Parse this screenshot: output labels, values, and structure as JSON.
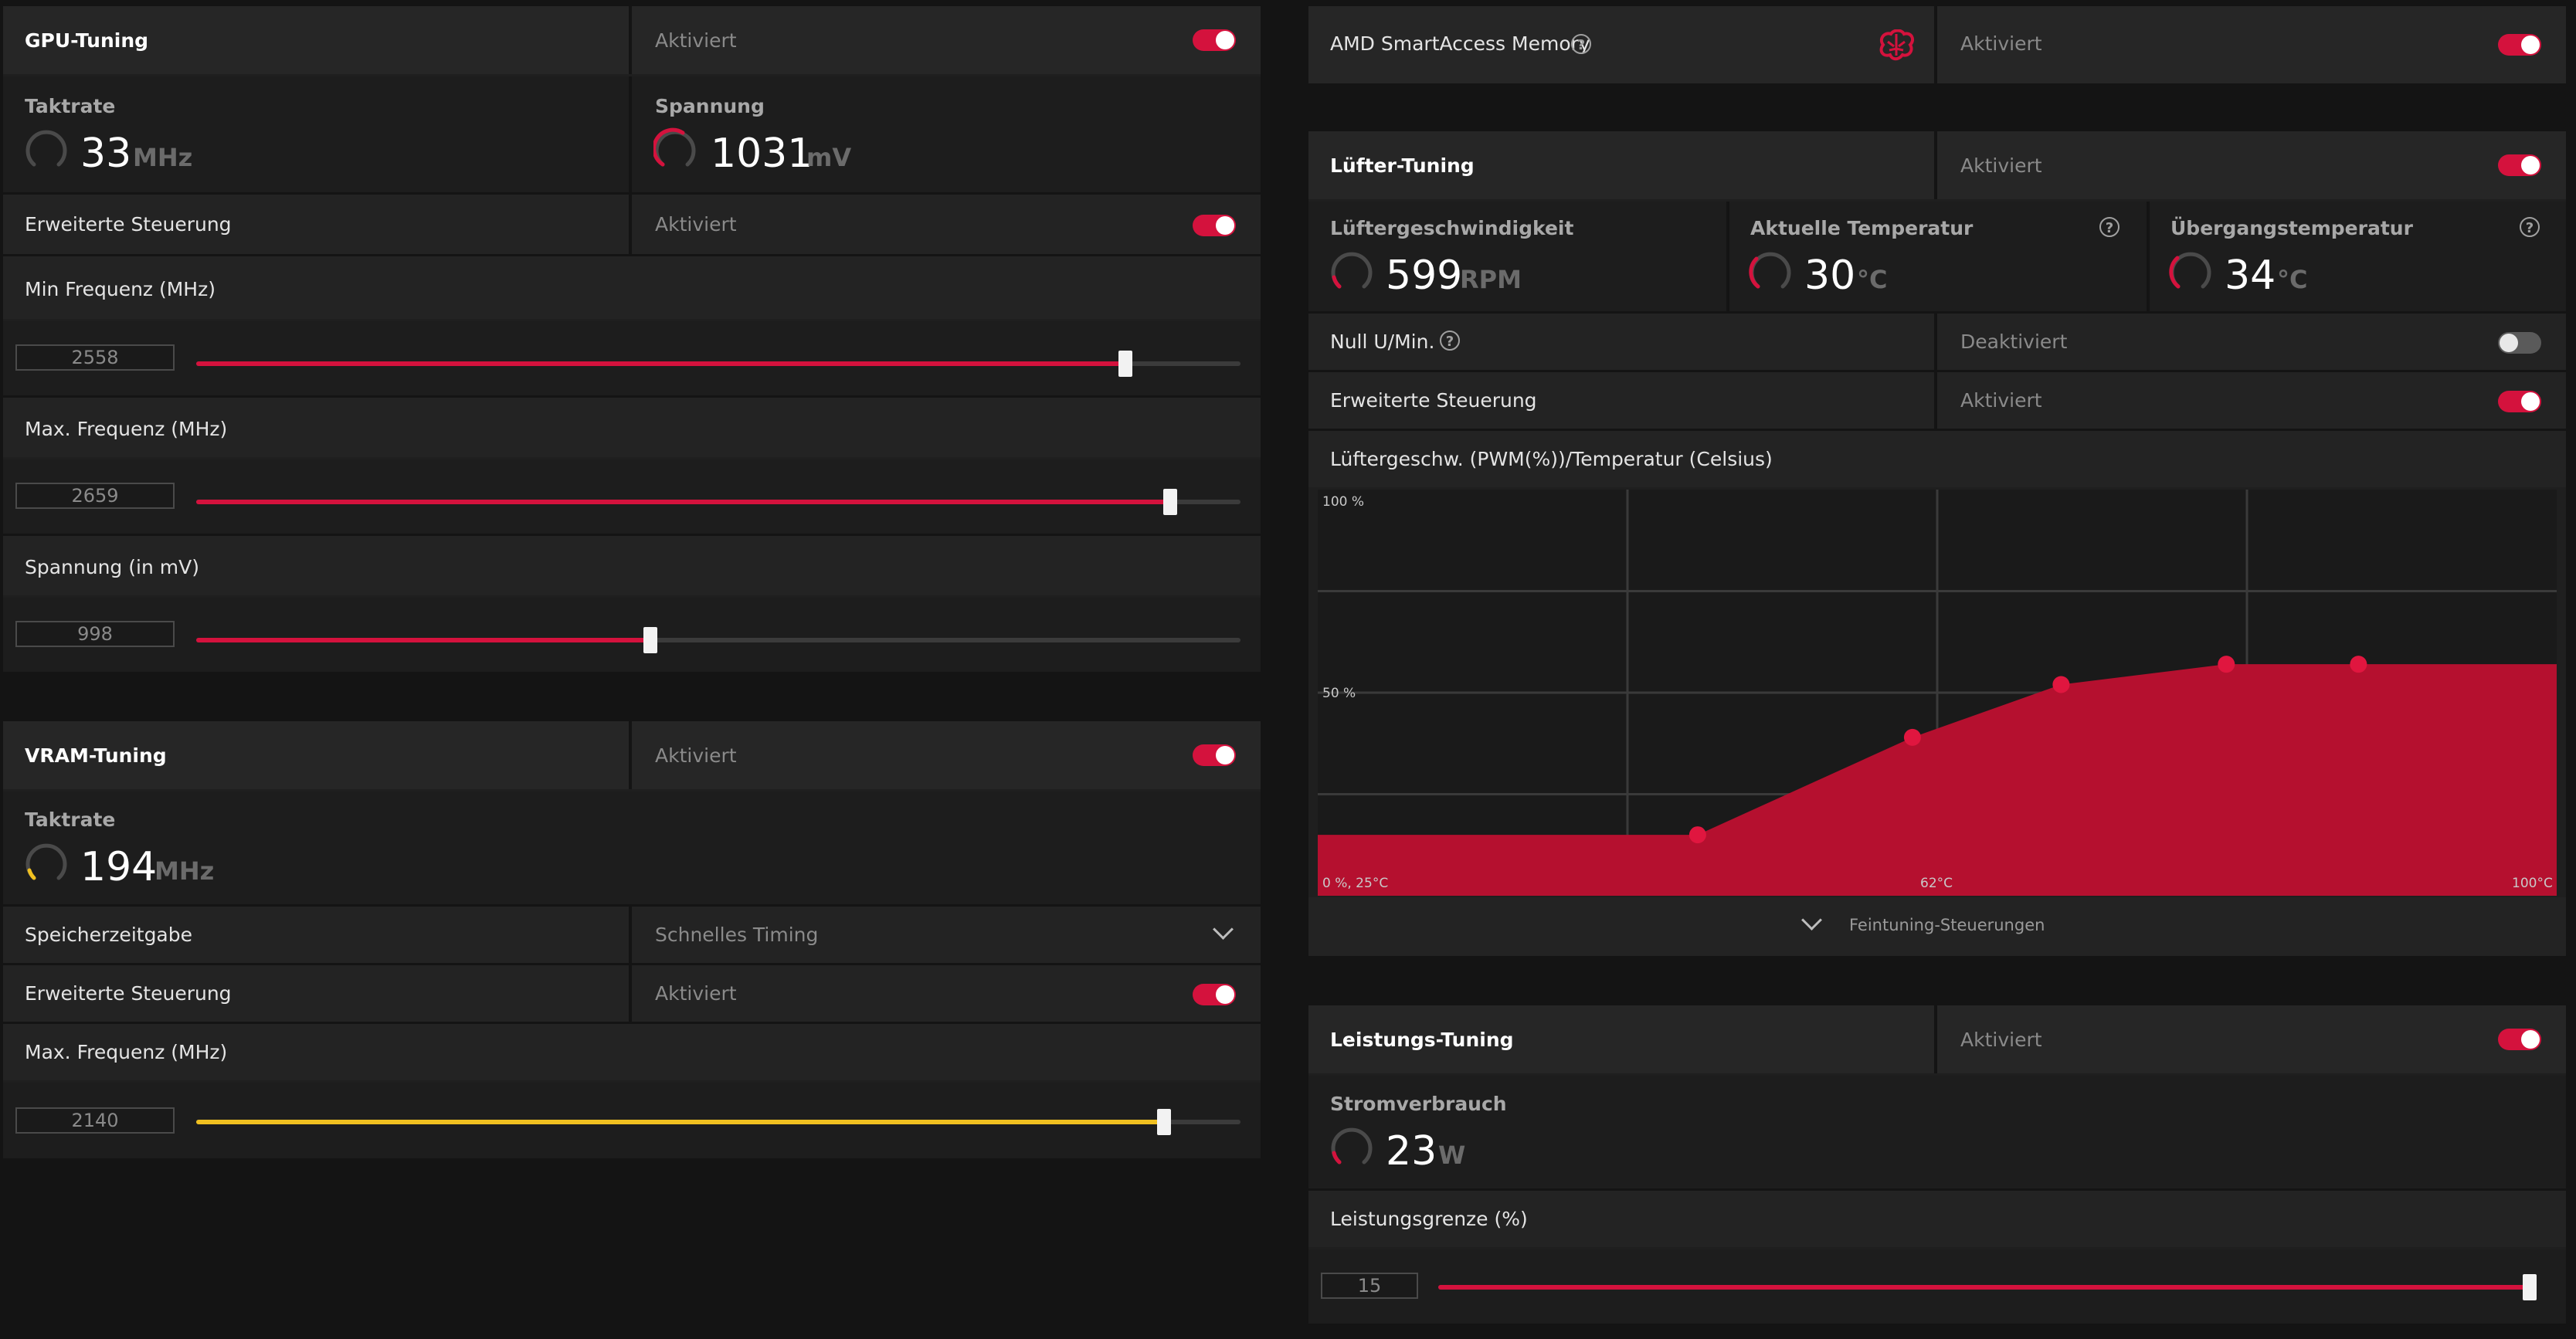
{
  "colors": {
    "accent": "#d4123d",
    "vram_accent": "#f0c020",
    "bg": "#141414",
    "panel": "#1f1f1f"
  },
  "gpu": {
    "title": "GPU-Tuning",
    "status": "Aktiviert",
    "clock_label": "Taktrate",
    "clock_value": "33",
    "clock_unit": "MHz",
    "voltage_label": "Spannung",
    "voltage_value": "1031",
    "voltage_unit": "mV",
    "adv_label": "Erweiterte Steuerung",
    "adv_status": "Aktiviert",
    "min_freq_label": "Min Frequenz (MHz)",
    "min_freq_value": "2558",
    "min_freq_fraction": 0.89,
    "max_freq_label": "Max. Frequenz (MHz)",
    "max_freq_value": "2659",
    "max_freq_fraction": 0.933,
    "volt_label": "Spannung (in mV)",
    "volt_value": "998",
    "volt_fraction": 0.435
  },
  "vram": {
    "title": "VRAM-Tuning",
    "status": "Aktiviert",
    "clock_label": "Taktrate",
    "clock_value": "194",
    "clock_unit": "MHz",
    "timing_label": "Speicherzeitgabe",
    "timing_value": "Schnelles Timing",
    "adv_label": "Erweiterte Steuerung",
    "adv_status": "Aktiviert",
    "max_freq_label": "Max. Frequenz (MHz)",
    "max_freq_value": "2140",
    "max_freq_fraction": 0.927
  },
  "sam": {
    "title": "AMD SmartAccess Memory",
    "help": "?",
    "icon": "brain-icon",
    "status": "Aktiviert"
  },
  "fan": {
    "title": "Lüfter-Tuning",
    "status": "Aktiviert",
    "speed_label": "Lüftergeschwindigkeit",
    "speed_value": "599",
    "speed_unit": "RPM",
    "temp_label": "Aktuelle Temperatur",
    "temp_value": "30",
    "temp_unit": "°C",
    "junction_label": "Übergangstemperatur",
    "junction_value": "34",
    "junction_unit": "°C",
    "help": "?",
    "zero_label": "Null U/Min.",
    "zero_status": "Deaktiviert",
    "adv_label": "Erweiterte Steuerung",
    "adv_status": "Aktiviert",
    "curve_label": "Lüftergeschw. (PWM(%))/Temperatur (Celsius)",
    "fine_tuning": "Feintuning-Steuerungen"
  },
  "chart_data": {
    "type": "area",
    "y_max_label": "100 %",
    "y_mid_label": "50 %",
    "x_start_label": "0 %, 25°C",
    "x_mid_label": "62°C",
    "x_end_label": "100°C",
    "xlim": [
      25,
      100
    ],
    "ylim": [
      0,
      100
    ],
    "points": [
      {
        "x": 48,
        "y": 15
      },
      {
        "x": 61,
        "y": 39
      },
      {
        "x": 70,
        "y": 52
      },
      {
        "x": 80,
        "y": 57
      },
      {
        "x": 88,
        "y": 57
      }
    ],
    "start_y": 15,
    "end_y": 57
  },
  "power": {
    "title": "Leistungs-Tuning",
    "status": "Aktiviert",
    "draw_label": "Stromverbrauch",
    "draw_value": "23",
    "draw_unit": "W",
    "limit_label": "Leistungsgrenze (%)",
    "limit_value": "15",
    "limit_fraction": 1.0
  }
}
